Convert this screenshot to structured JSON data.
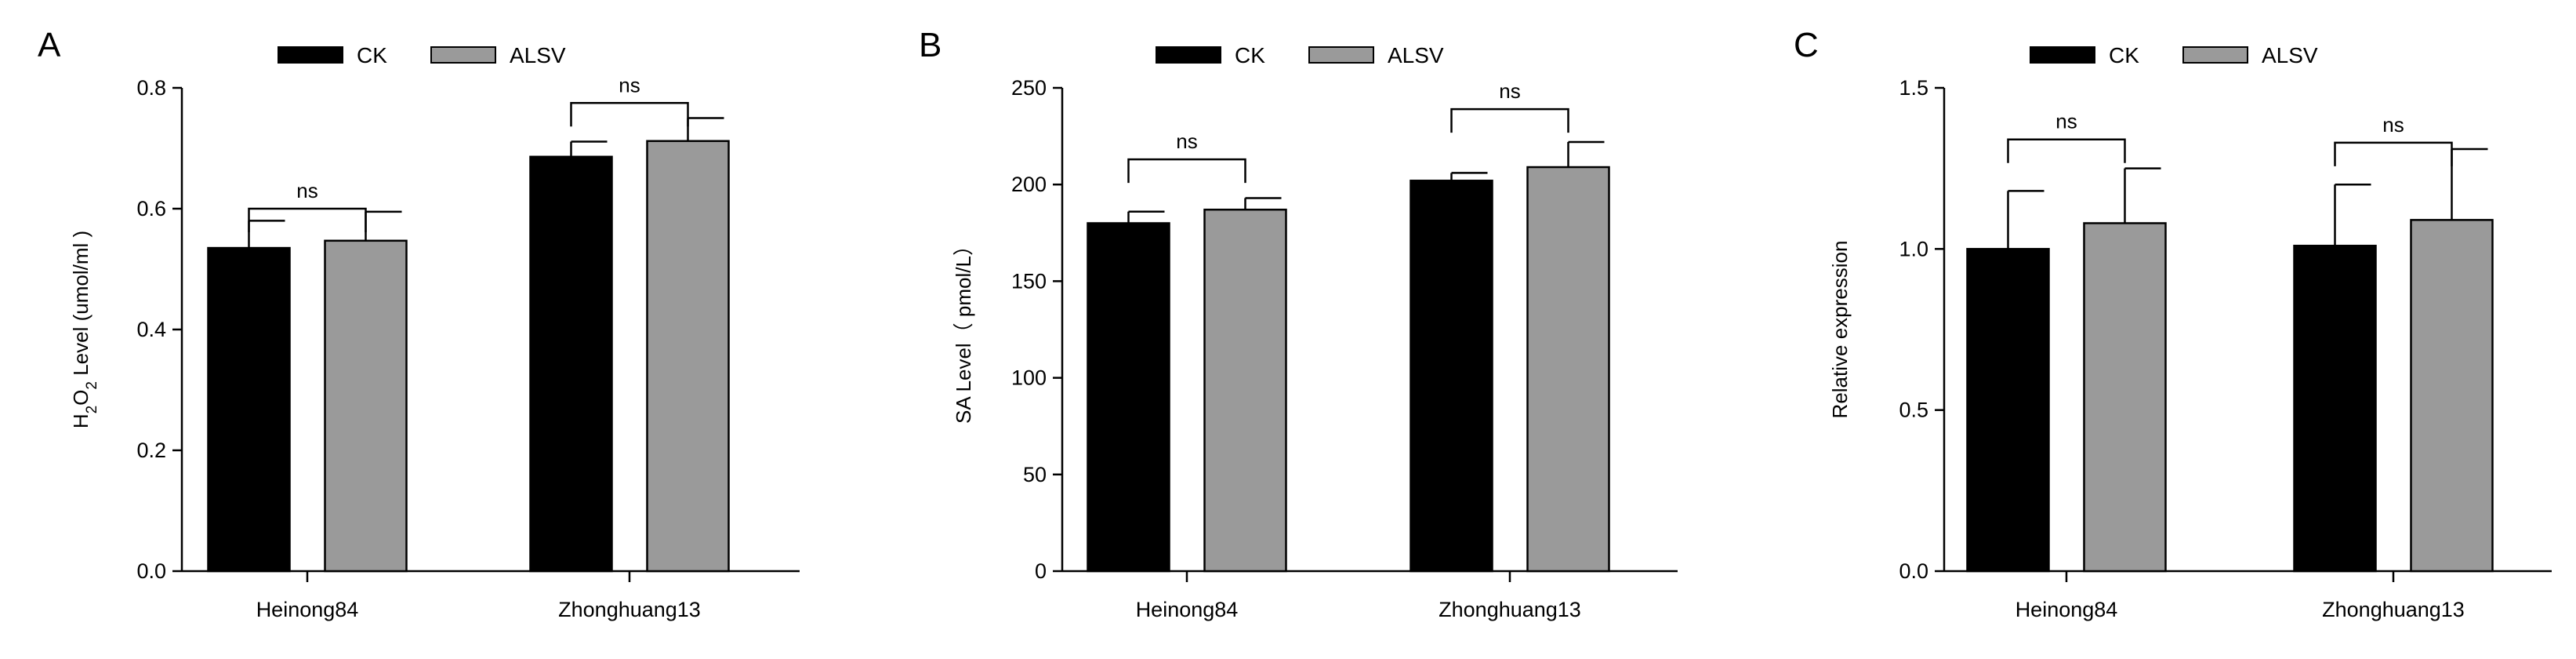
{
  "chart_data": [
    {
      "type": "bar",
      "panel_label": "A",
      "ylabel_parts": {
        "base": "H",
        "sub1": "2",
        "mid": "O",
        "sub2": "2",
        "rest": " Level (umol/ml )"
      },
      "categories": [
        "Heinong84",
        "Zhonghuang13"
      ],
      "series": [
        {
          "name": "CK",
          "color": "#000000",
          "values": [
            0.535,
            0.686
          ],
          "errors": [
            0.045,
            0.025
          ]
        },
        {
          "name": "ALSV",
          "color": "#9a9a9a",
          "values": [
            0.547,
            0.712
          ],
          "errors": [
            0.048,
            0.038
          ]
        }
      ],
      "ylim": [
        0,
        0.8
      ],
      "yticks": [
        "0.0",
        "0.2",
        "0.4",
        "0.6",
        "0.8"
      ],
      "yticks_values": [
        0,
        0.2,
        0.4,
        0.6,
        0.8
      ],
      "annotations": [
        {
          "category_index": 0,
          "text": "ns",
          "level": 0.6
        },
        {
          "category_index": 1,
          "text": "ns",
          "level": 0.775
        }
      ],
      "legend": "top"
    },
    {
      "type": "bar",
      "panel_label": "B",
      "ylabel": "SA Level（ pmol/L）",
      "categories": [
        "Heinong84",
        "Zhonghuang13"
      ],
      "series": [
        {
          "name": "CK",
          "color": "#000000",
          "values": [
            180,
            202
          ],
          "errors": [
            6,
            4
          ]
        },
        {
          "name": "ALSV",
          "color": "#9a9a9a",
          "values": [
            187,
            209
          ],
          "errors": [
            6,
            13
          ]
        }
      ],
      "ylim": [
        0,
        250
      ],
      "yticks": [
        "0",
        "50",
        "100",
        "150",
        "200",
        "250"
      ],
      "yticks_values": [
        0,
        50,
        100,
        150,
        200,
        250
      ],
      "annotations": [
        {
          "category_index": 0,
          "text": "ns",
          "level": 213
        },
        {
          "category_index": 1,
          "text": "ns",
          "level": 239
        }
      ],
      "legend": "top"
    },
    {
      "type": "bar",
      "panel_label": "C",
      "ylabel": "Relative expression",
      "categories": [
        "Heinong84",
        "Zhonghuang13"
      ],
      "series": [
        {
          "name": "CK",
          "color": "#000000",
          "values": [
            1.0,
            1.01
          ],
          "errors": [
            0.18,
            0.19
          ]
        },
        {
          "name": "ALSV",
          "color": "#9a9a9a",
          "values": [
            1.08,
            1.09
          ],
          "errors": [
            0.17,
            0.22
          ]
        }
      ],
      "ylim": [
        0,
        1.5
      ],
      "yticks": [
        "0.0",
        "0.5",
        "1.0",
        "1.5"
      ],
      "yticks_values": [
        0,
        0.5,
        1.0,
        1.5
      ],
      "annotations": [
        {
          "category_index": 0,
          "text": "ns",
          "level": 1.34
        },
        {
          "category_index": 1,
          "text": "ns",
          "level": 1.33
        }
      ],
      "legend": "top"
    }
  ]
}
